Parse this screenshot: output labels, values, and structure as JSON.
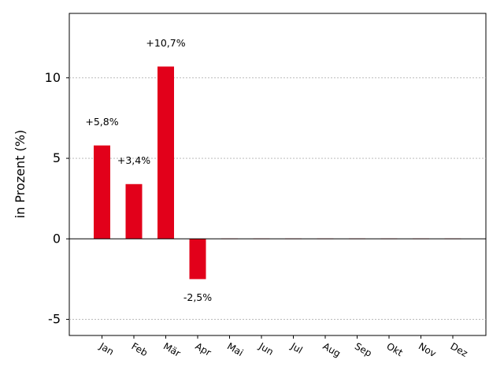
{
  "chart_data": {
    "type": "bar",
    "categories": [
      "Jan",
      "Feb",
      "Mär",
      "Apr",
      "Mai",
      "Jun",
      "Jul",
      "Aug",
      "Sep",
      "Okt",
      "Nov",
      "Dez"
    ],
    "series": [
      {
        "values": [
          5.8,
          3.4,
          10.7,
          -2.5,
          0,
          0,
          0,
          0,
          0,
          0,
          0,
          0
        ],
        "data_labels": [
          "+5,8%",
          "+3,4%",
          "+10,7%",
          "-2,5%",
          "",
          "",
          "",
          "",
          "",
          "",
          "",
          ""
        ],
        "color": "#e2001a"
      }
    ],
    "title": "",
    "xlabel": "",
    "ylabel": "in Prozent (%)",
    "ylim": [
      -6,
      14
    ],
    "yticks": [
      -5,
      0,
      5,
      10
    ],
    "ytick_labels": [
      "-5",
      "0",
      "5",
      "10"
    ],
    "grid": "y-dashed",
    "zero_line": true,
    "legend": "none"
  }
}
